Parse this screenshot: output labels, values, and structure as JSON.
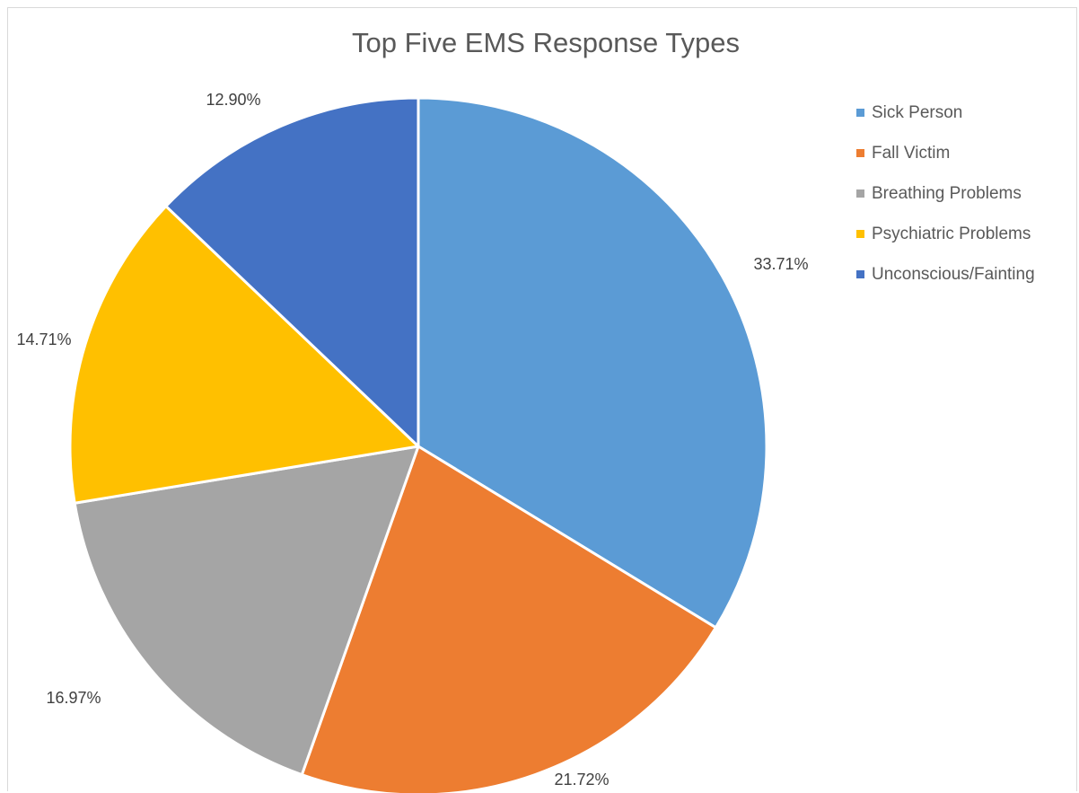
{
  "chart_data": {
    "type": "pie",
    "title": "Top Five EMS Response Types",
    "legend_position": "right",
    "slices": [
      {
        "label": "Sick Person",
        "value": 33.71,
        "display": "33.71%",
        "color": "#5b9bd5"
      },
      {
        "label": "Fall Victim",
        "value": 21.72,
        "display": "21.72%",
        "color": "#ed7d31"
      },
      {
        "label": "Breathing Problems",
        "value": 16.97,
        "display": "16.97%",
        "color": "#a5a5a5"
      },
      {
        "label": "Psychiatric Problems",
        "value": 14.71,
        "display": "14.71%",
        "color": "#ffc000"
      },
      {
        "label": "Unconscious/Fainting",
        "value": 12.9,
        "display": "12.90%",
        "color": "#4472c4"
      }
    ]
  }
}
